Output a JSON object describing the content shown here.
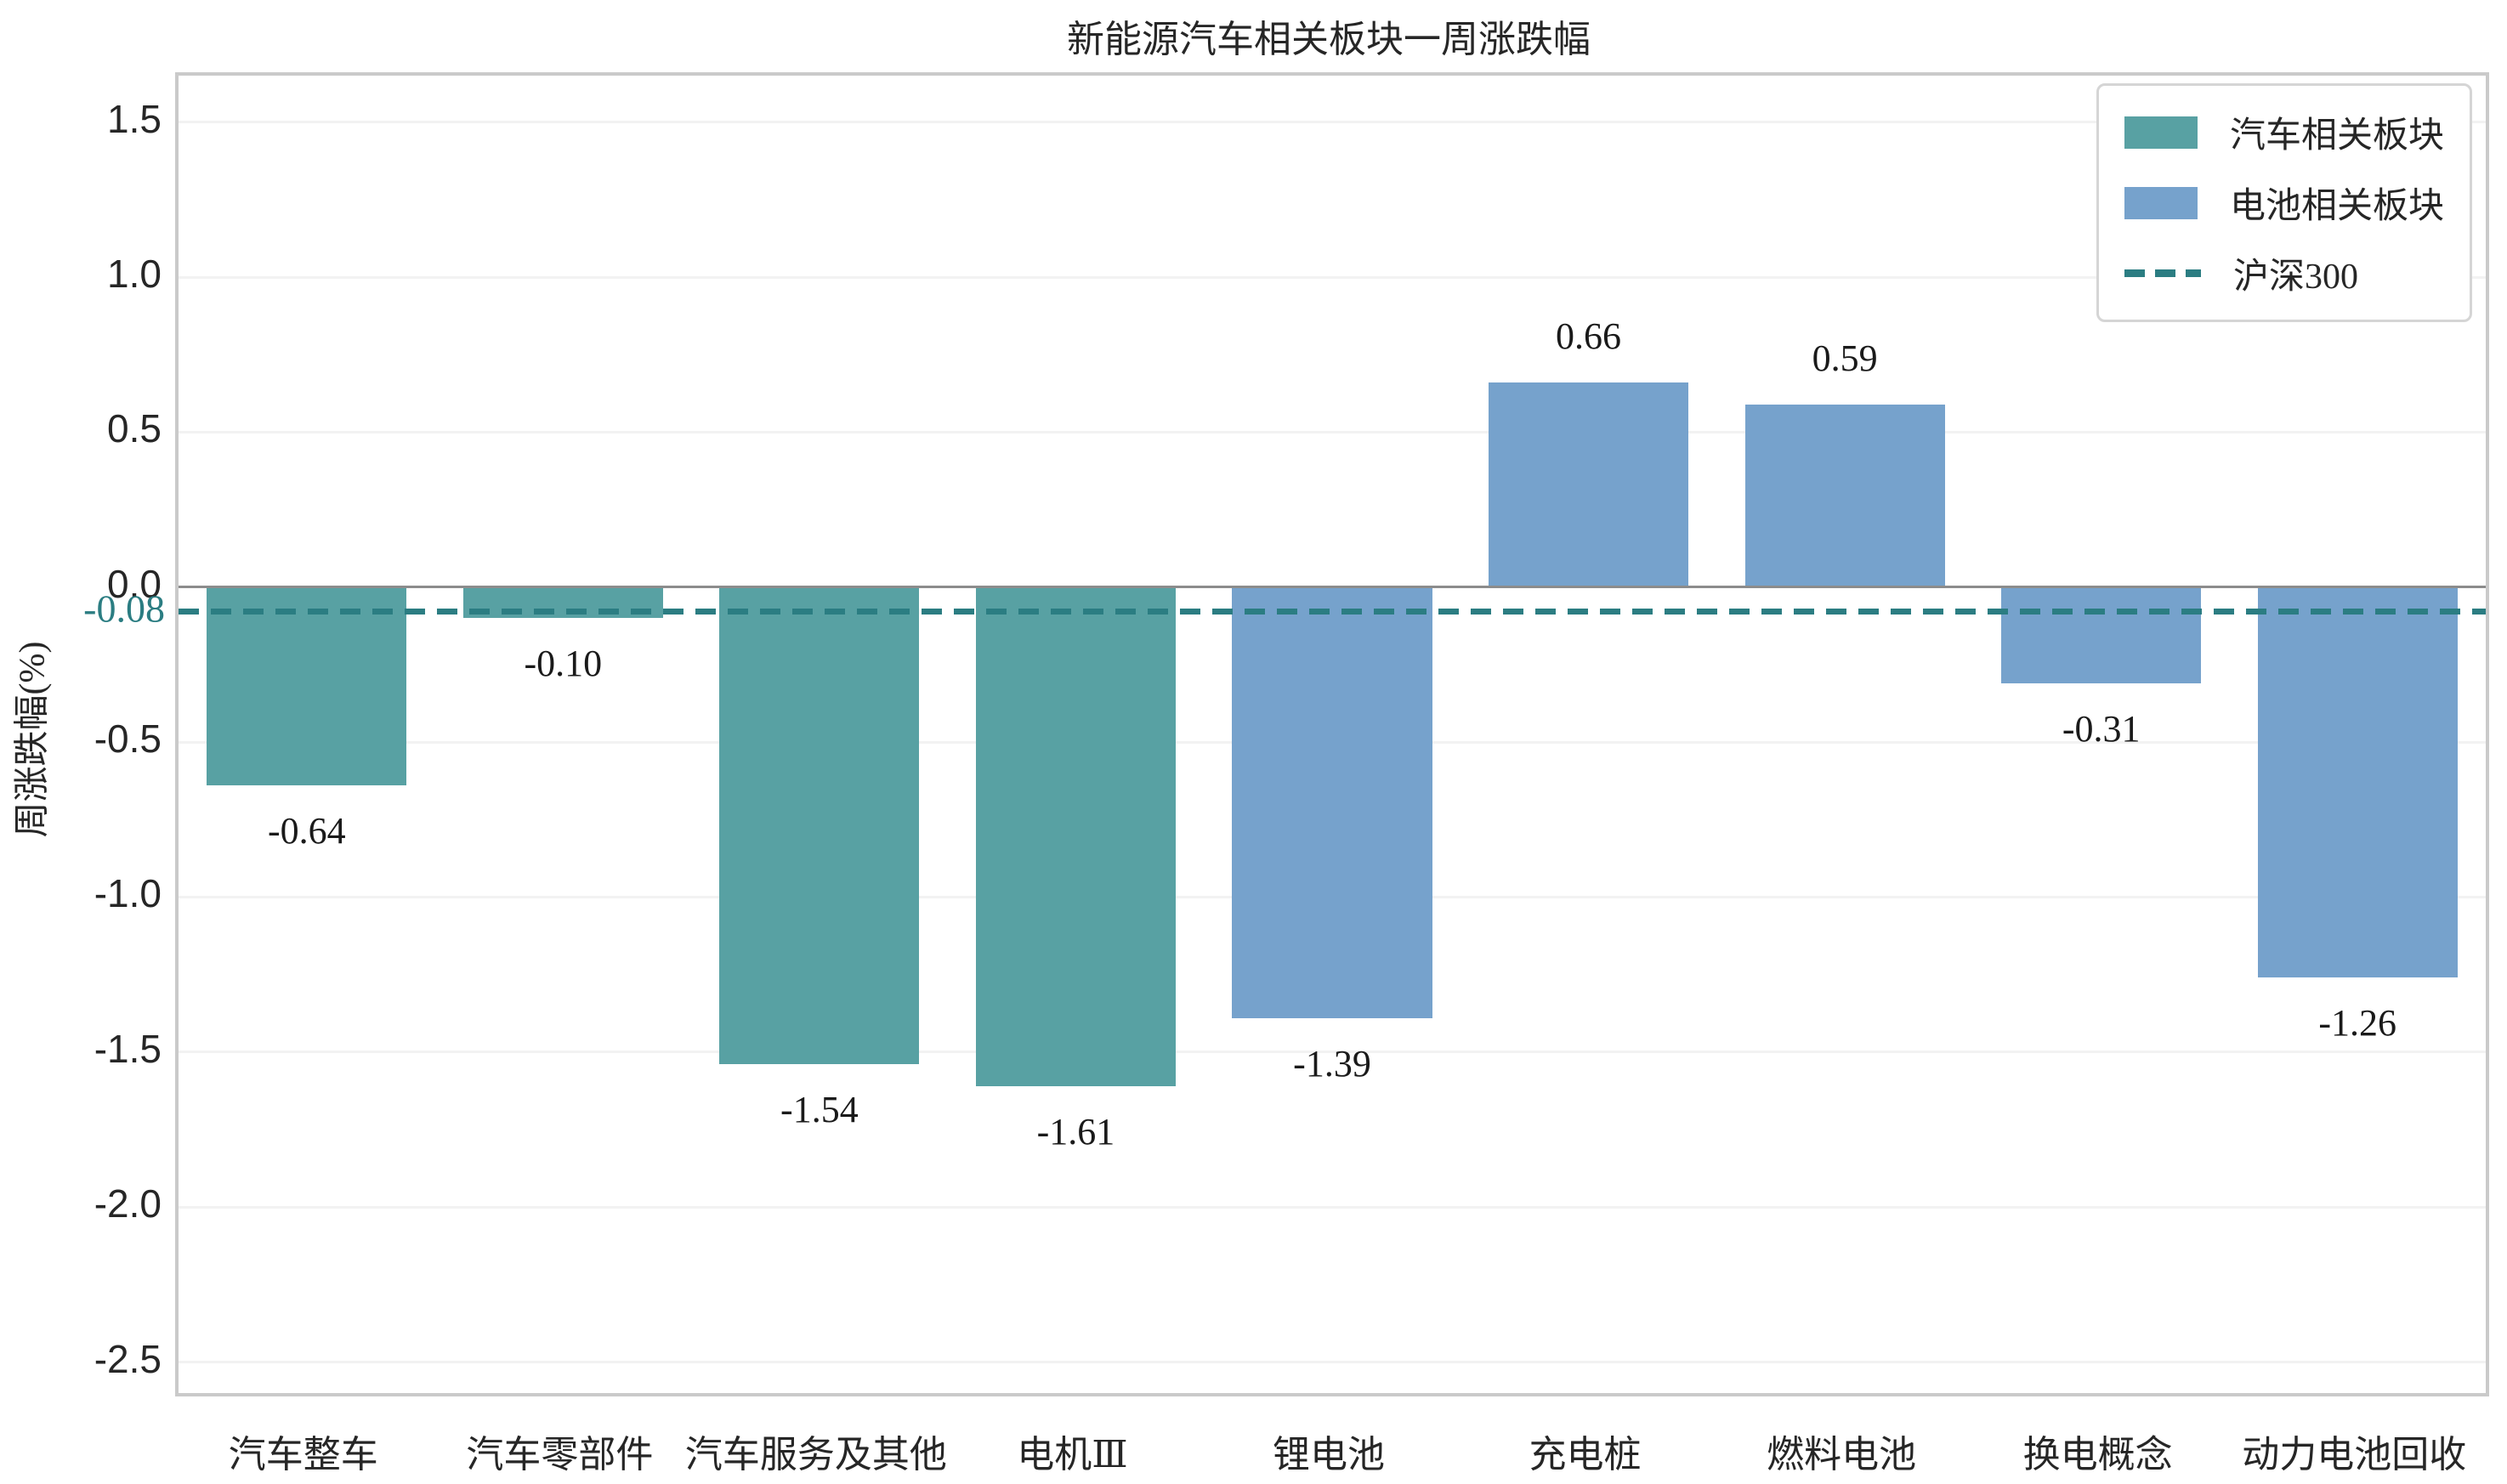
{
  "title": "新能源汽车相关板块一周涨跌幅",
  "chart_data": {
    "type": "bar",
    "title": "新能源汽车相关板块一周涨跌幅",
    "xlabel": "",
    "ylabel": "周涨跌幅(%)",
    "ylim": [
      -2.6,
      1.65
    ],
    "yticks": [
      1.5,
      1.0,
      0.5,
      0.0,
      -0.5,
      -1.0,
      -1.5,
      -2.0,
      -2.5
    ],
    "grid": true,
    "legend_position": "upper right",
    "categories": [
      "汽车整车",
      "汽车零部件",
      "汽车服务及其他",
      "电机Ⅲ",
      "锂电池",
      "充电桩",
      "燃料电池",
      "换电概念",
      "动力电池回收"
    ],
    "series": [
      {
        "name": "汽车相关板块",
        "color": "#58A1A3",
        "values": [
          -0.64,
          -0.1,
          -1.54,
          -1.61,
          null,
          null,
          null,
          null,
          null
        ]
      },
      {
        "name": "电池相关板块",
        "color": "#76A2CC",
        "values": [
          null,
          null,
          null,
          null,
          -1.39,
          0.66,
          0.59,
          -0.31,
          -1.26
        ]
      }
    ],
    "bar_labels": [
      "-0.64",
      "-0.10",
      "-1.54",
      "-1.61",
      "-1.39",
      "0.66",
      "0.59",
      "-0.31",
      "-1.26"
    ],
    "reference_line": {
      "name": "沪深300",
      "value": -0.08,
      "label": "-0.08",
      "color": "#2B7D82",
      "style": "dashed"
    }
  },
  "legend": {
    "items": [
      {
        "label": "汽车相关板块",
        "color": "#58A1A3",
        "marker": "rect"
      },
      {
        "label": "电池相关板块",
        "color": "#76A2CC",
        "marker": "rect"
      },
      {
        "label": "沪深300",
        "color": "#2B7D82",
        "marker": "dashed-line"
      }
    ]
  },
  "colors": {
    "auto_sector": "#58A1A3",
    "battery_sector": "#76A2CC",
    "reference": "#2B7D82",
    "zero_line": "#8C8C8C",
    "gridline": "#F2F2F2",
    "spine": "#CACACA",
    "text": "#262626"
  }
}
